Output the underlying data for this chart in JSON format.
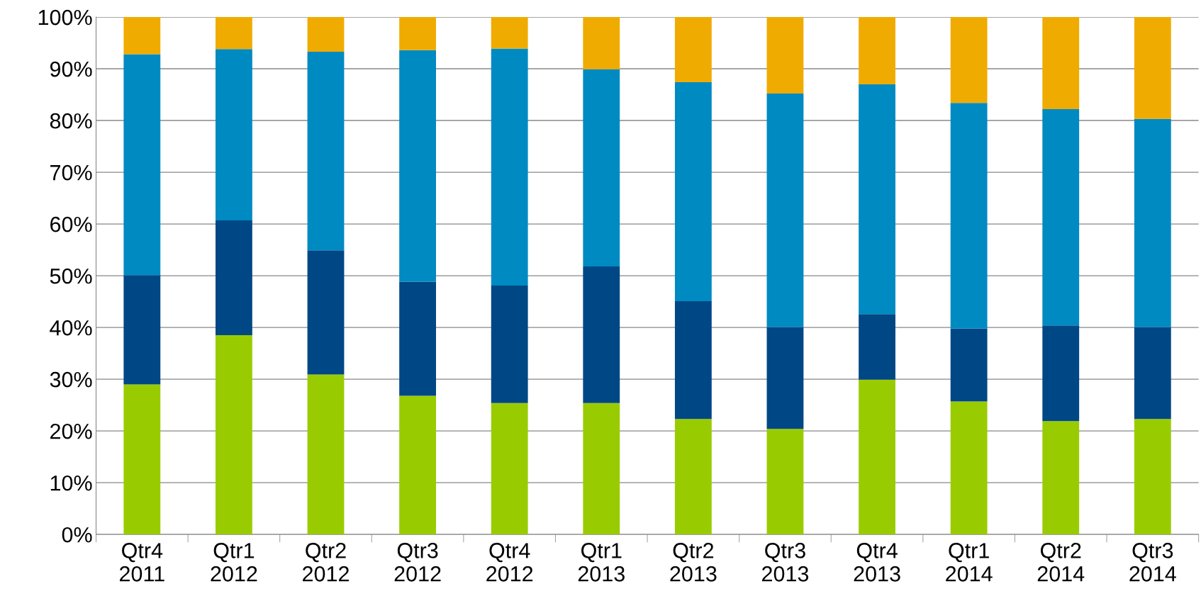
{
  "chart_data": {
    "type": "bar",
    "stacked": true,
    "categories": [
      "Qtr4\n2011",
      "Qtr1\n2012",
      "Qtr2\n2012",
      "Qtr3\n2012",
      "Qtr4\n2012",
      "Qtr1\n2013",
      "Qtr2\n2013",
      "Qtr3\n2013",
      "Qtr4\n2013",
      "Qtr1\n2014",
      "Qtr2\n2014",
      "Qtr3\n2014"
    ],
    "series": [
      {
        "color": "#99cc00",
        "values": [
          29.0,
          38.5,
          30.9,
          26.8,
          25.4,
          25.4,
          22.3,
          20.4,
          29.9,
          25.7,
          21.9,
          22.3
        ]
      },
      {
        "color": "#004785",
        "values": [
          21.1,
          22.2,
          24.0,
          22.0,
          22.7,
          26.4,
          22.8,
          19.7,
          12.7,
          14.1,
          18.5,
          17.8
        ]
      },
      {
        "color": "#008ac2",
        "values": [
          42.7,
          33.1,
          38.4,
          44.8,
          45.8,
          38.1,
          42.3,
          45.1,
          44.4,
          43.6,
          41.8,
          40.2
        ]
      },
      {
        "color": "#f0ab00",
        "values": [
          7.2,
          6.2,
          6.7,
          6.4,
          6.1,
          10.1,
          12.6,
          14.8,
          13.0,
          16.6,
          17.8,
          19.7
        ]
      }
    ],
    "ylim": [
      0,
      100
    ],
    "yticks": [
      {
        "value": 0,
        "label": "0%"
      },
      {
        "value": 10,
        "label": "10%"
      },
      {
        "value": 20,
        "label": "20%"
      },
      {
        "value": 30,
        "label": "30%"
      },
      {
        "value": 40,
        "label": "40%"
      },
      {
        "value": 50,
        "label": "50%"
      },
      {
        "value": 60,
        "label": "60%"
      },
      {
        "value": 70,
        "label": "70%"
      },
      {
        "value": 80,
        "label": "80%"
      },
      {
        "value": 90,
        "label": "90%"
      },
      {
        "value": 100,
        "label": "100%"
      }
    ],
    "grid": "y"
  }
}
